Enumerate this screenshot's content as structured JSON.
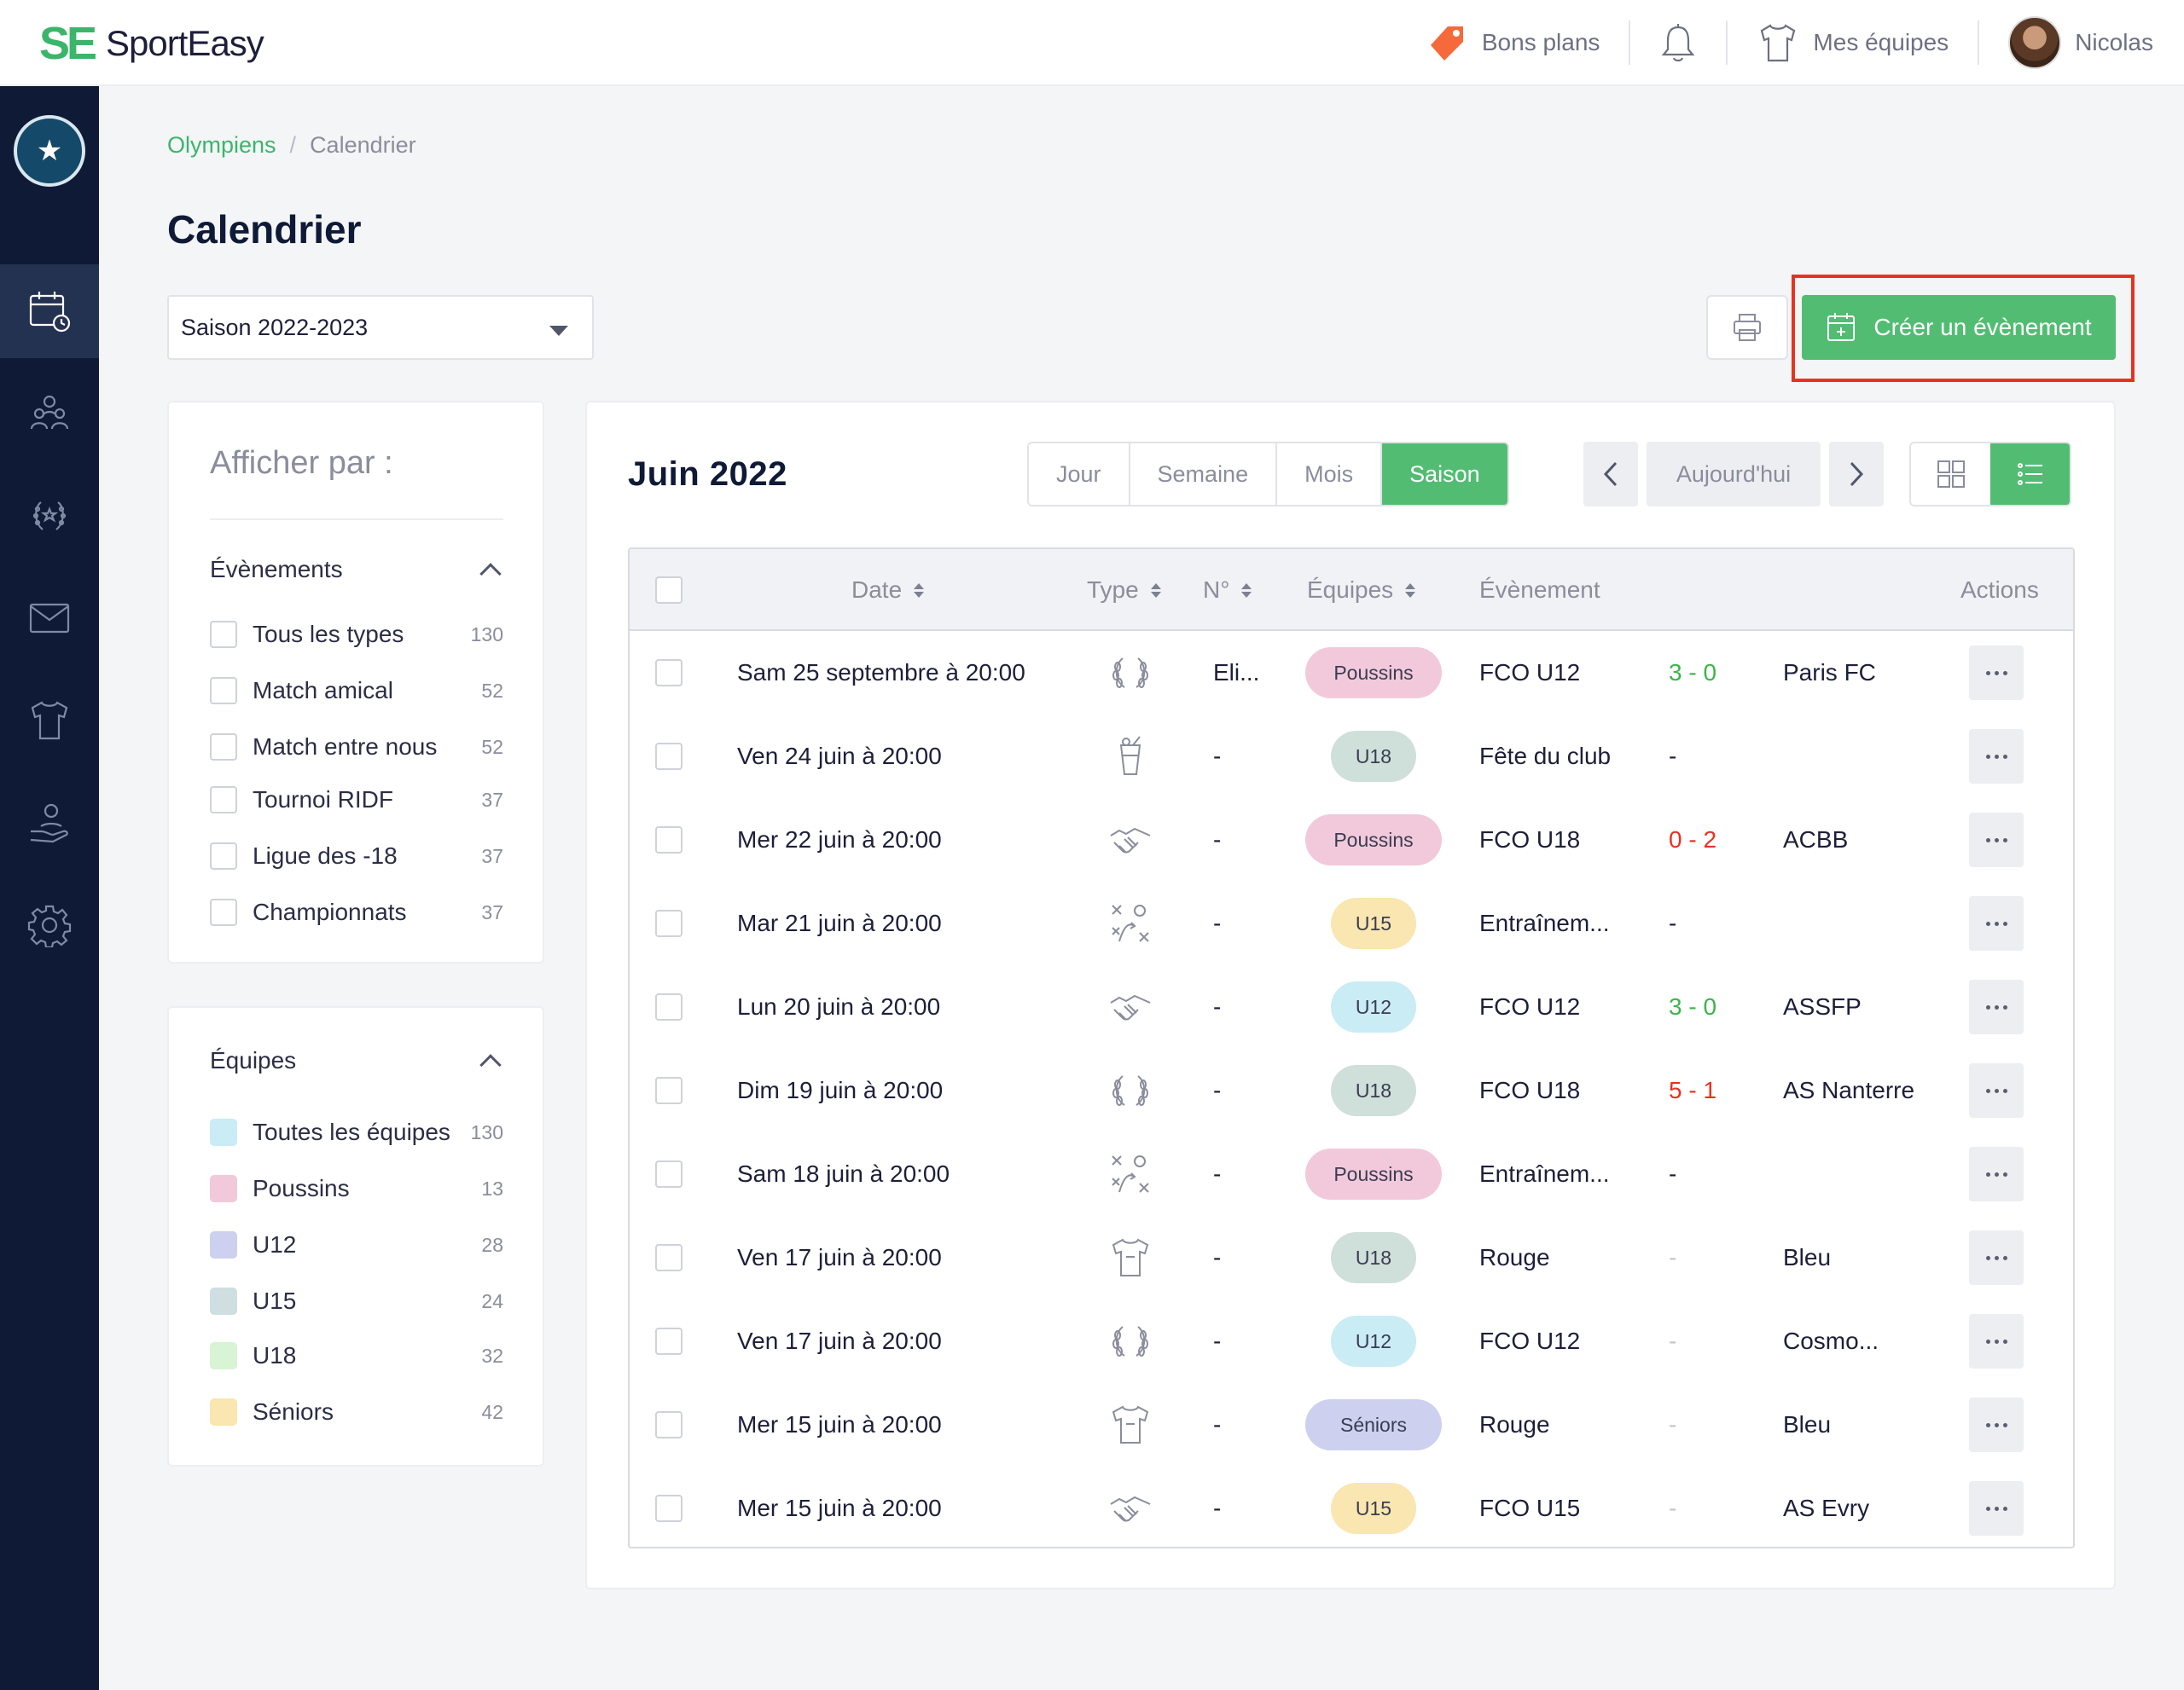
{
  "topbar": {
    "logo_mark": "SE",
    "logo_text": "SportEasy",
    "bons_plans": "Bons plans",
    "mes_equipes": "Mes équipes",
    "user_name": "Nicolas"
  },
  "breadcrumb": {
    "club": "Olympiens",
    "sep": "/",
    "current": "Calendrier"
  },
  "page": {
    "title": "Calendrier",
    "season": "Saison 2022-2023",
    "create_label": "Créer un évènement"
  },
  "filters": {
    "title": "Afficher par :",
    "events_heading": "Évènements",
    "events": [
      {
        "label": "Tous les types",
        "count": "130"
      },
      {
        "label": "Match amical",
        "count": "52"
      },
      {
        "label": "Match entre nous",
        "count": "52"
      },
      {
        "label": "Tournoi RIDF",
        "count": "37"
      },
      {
        "label": "Ligue des -18",
        "count": "37"
      },
      {
        "label": "Championnats",
        "count": "37"
      }
    ],
    "teams_heading": "Équipes",
    "teams": [
      {
        "label": "Toutes les équipes",
        "count": "130",
        "color": "#c9ecf5"
      },
      {
        "label": "Poussins",
        "count": "13",
        "color": "#f2c9db"
      },
      {
        "label": "U12",
        "count": "28",
        "color": "#cdd0ee"
      },
      {
        "label": "U15",
        "count": "24",
        "color": "#cfdee0"
      },
      {
        "label": "U18",
        "count": "32",
        "color": "#d7f4d5"
      },
      {
        "label": "Séniors",
        "count": "42",
        "color": "#f9e6b0"
      }
    ]
  },
  "calendar": {
    "month_label": "Juin  2022",
    "views": [
      "Jour",
      "Semaine",
      "Mois",
      "Saison"
    ],
    "active_view": "Saison",
    "today_label": "Aujourd'hui",
    "columns": {
      "date": "Date",
      "type": "Type",
      "num": "N°",
      "teams": "Équipes",
      "event": "Évènement",
      "actions": "Actions"
    }
  },
  "rows": [
    {
      "date": "Sam 25 septembre à 20:00",
      "type_icon": "laurel-icon",
      "num": "Eli...",
      "team": "Poussins",
      "event": "FCO U12",
      "score": "3 - 0",
      "score_style": "win",
      "opponent": "Paris FC"
    },
    {
      "date": "Ven 24 juin à 20:00",
      "type_icon": "drink-icon",
      "num": "-",
      "team": "U18",
      "event": "Fête du club",
      "score": "-",
      "score_style": "plain",
      "opponent": ""
    },
    {
      "date": "Mer 22 juin à 20:00",
      "type_icon": "handshake-icon",
      "num": "-",
      "team": "Poussins",
      "event": "FCO U18",
      "score": "0 - 2",
      "score_style": "loss",
      "opponent": "ACBB"
    },
    {
      "date": "Mar 21 juin à 20:00",
      "type_icon": "tactics-icon",
      "num": "-",
      "team": "U15",
      "event": "Entraînem...",
      "score": "-",
      "score_style": "plain",
      "opponent": ""
    },
    {
      "date": "Lun 20 juin à 20:00",
      "type_icon": "handshake-icon",
      "num": "-",
      "team": "U12",
      "event": "FCO U12",
      "score": "3 - 0",
      "score_style": "win",
      "opponent": "ASSFP"
    },
    {
      "date": "Dim 19 juin à 20:00",
      "type_icon": "laurel-icon",
      "num": "-",
      "team": "U18",
      "event": "FCO U18",
      "score": "5 - 1",
      "score_style": "loss",
      "opponent": "AS Nanterre"
    },
    {
      "date": "Sam 18 juin à 20:00",
      "type_icon": "tactics-icon",
      "num": "-",
      "team": "Poussins",
      "event": "Entraînem...",
      "score": "-",
      "score_style": "plain",
      "opponent": ""
    },
    {
      "date": "Ven 17 juin à 20:00",
      "type_icon": "jersey-icon",
      "num": "-",
      "team": "U18",
      "event": "Rouge",
      "score": "-",
      "score_style": "muted",
      "opponent": "Bleu"
    },
    {
      "date": "Ven 17 juin à 20:00",
      "type_icon": "laurel-icon",
      "num": "-",
      "team": "U12",
      "event": "FCO U12",
      "score": "-",
      "score_style": "muted",
      "opponent": "Cosmo..."
    },
    {
      "date": "Mer 15 juin à 20:00",
      "type_icon": "jersey-icon",
      "num": "-",
      "team": "Séniors",
      "event": "Rouge",
      "score": "-",
      "score_style": "muted",
      "opponent": "Bleu"
    },
    {
      "date": "Mer 15 juin à 20:00",
      "type_icon": "handshake-icon",
      "num": "-",
      "team": "U15",
      "event": "FCO U15",
      "score": "-",
      "score_style": "muted",
      "opponent": "AS Evry"
    }
  ],
  "team_colors": {
    "Poussins": "#f2c9db",
    "U12": "#c9ecf5",
    "U15": "#f9e6b0",
    "U18": "#cfdfd9",
    "Séniors": "#cdd0ee"
  },
  "accent_green": "#52bd72",
  "highlight_red": "#e8321f"
}
